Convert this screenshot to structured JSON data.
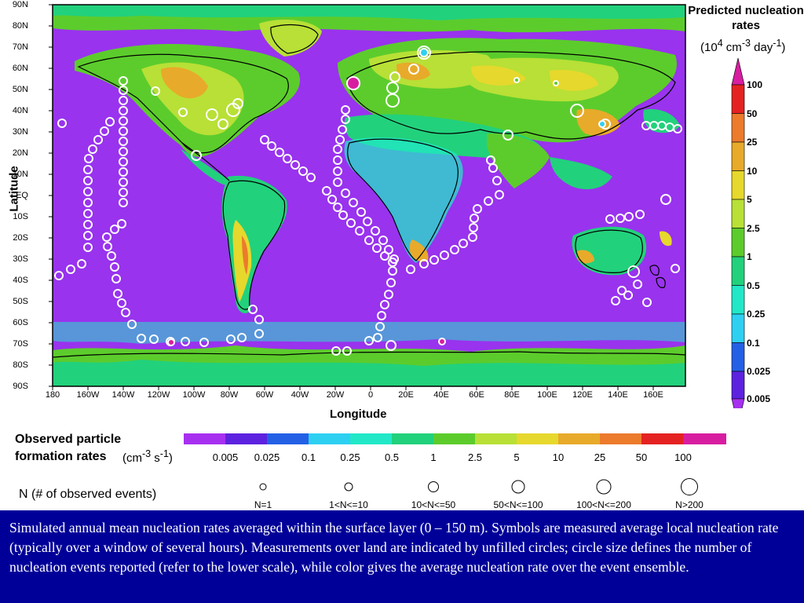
{
  "map": {
    "lat_ticks": [
      "90N",
      "80N",
      "70N",
      "60N",
      "50N",
      "40N",
      "30N",
      "20N",
      "10N",
      "EQ",
      "10S",
      "20S",
      "30S",
      "40S",
      "50S",
      "60S",
      "70S",
      "80S",
      "90S"
    ],
    "lon_ticks": [
      "180",
      "160W",
      "140W",
      "120W",
      "100W",
      "80W",
      "60W",
      "40W",
      "20W",
      "0",
      "20E",
      "40E",
      "60E",
      "80E",
      "100E",
      "120E",
      "140E",
      "160E"
    ],
    "xlabel": "Longitude",
    "ylabel": "Latitude",
    "background_color": "#9933ee"
  },
  "legend": {
    "title": "Predicted nucleation rates",
    "units_prefix": "(10",
    "units_exp1": "4",
    "units_mid": " cm",
    "units_exp2": "-3",
    "units_day": " day",
    "units_exp3": "-1",
    "units_suffix": ")",
    "levels": [
      "100",
      "50",
      "25",
      "10",
      "5",
      "2.5",
      "1",
      "0.5",
      "0.25",
      "0.1",
      "0.025",
      "0.005"
    ],
    "colors": [
      "#d81ea0",
      "#e52222",
      "#ec7b2c",
      "#e8aa2a",
      "#e6d82c",
      "#b8e036",
      "#5ccc2c",
      "#22d17c",
      "#22e8c8",
      "#2ed0f2",
      "#2460e6",
      "#5d22e0",
      "#a730f0"
    ]
  },
  "observed": {
    "title_line1": "Observed particle",
    "title_line2": "formation rates",
    "units_prefix": "(cm",
    "units_exp1": "-3",
    "units_mid": " s",
    "units_exp2": "-1",
    "units_suffix": ")",
    "bar_labels": [
      "0.005",
      "0.025",
      "0.1",
      "0.25",
      "0.5",
      "1",
      "2.5",
      "5",
      "10",
      "25",
      "50",
      "100"
    ],
    "bar_colors": [
      "#a730f0",
      "#5d22e0",
      "#2460e6",
      "#2ed0f2",
      "#22e8c8",
      "#22d17c",
      "#5ccc2c",
      "#b8e036",
      "#e6d82c",
      "#e8aa2a",
      "#ec7b2c",
      "#e52222",
      "#d81ea0"
    ]
  },
  "event_sizes": {
    "title": "N (# of observed events)",
    "labels": [
      "N=1",
      "1<N<=10",
      "10<N<=50",
      "50<N<=100",
      "100<N<=200",
      "N>200"
    ]
  },
  "caption": "Simulated annual mean nucleation rates averaged within the surface layer (0 – 150 m). Symbols are measured average local nucleation rate (typically over a window of several hours). Measurements over land are indicated by unfilled circles; circle size defines the number of nucleation events reported (refer to the lower scale), while color gives the average nucleation rate over the event ensemble."
}
